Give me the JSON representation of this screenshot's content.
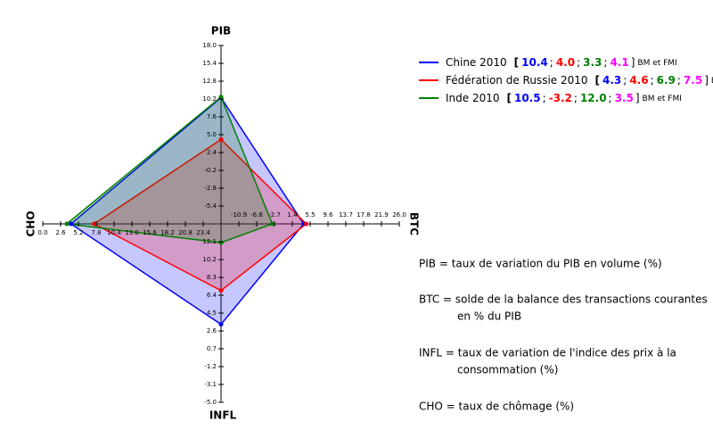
{
  "chart_data": {
    "type": "radar",
    "axes": [
      {
        "name": "PIB",
        "lim": [
          -8,
          18
        ],
        "ticks": [
          -5.4,
          -2.8,
          -0.2,
          2.4,
          {
            "value": 5,
            "label": "5.0"
          },
          7.6,
          10.2,
          12.8,
          15.4,
          {
            "value": 18,
            "label": "18.0"
          }
        ]
      },
      {
        "name": "BTC",
        "lim": [
          -15,
          26
        ],
        "ticks": [
          -10.9,
          -6.8,
          -2.7,
          1.4,
          5.5,
          9.6,
          13.7,
          17.8,
          21.9,
          {
            "value": 26,
            "label": "26.0"
          }
        ]
      },
      {
        "name": "INFL",
        "lim": [
          14,
          -5
        ],
        "ticks": [
          12.1,
          10.2,
          8.3,
          6.4,
          4.5,
          2.6,
          0.7,
          -1.2,
          -3.1,
          {
            "value": -5,
            "label": "-5.0"
          }
        ]
      },
      {
        "name": "CHO",
        "lim": [
          26,
          0
        ],
        "ticks": [
          23.4,
          20.8,
          18.2,
          15.6,
          {
            "value": 13,
            "label": "13.0"
          },
          10.4,
          7.8,
          5.2,
          2.6,
          {
            "value": 0,
            "label": "0.0"
          }
        ]
      }
    ],
    "value_colors": [
      "#0000ff",
      "#ff0000",
      "#008000",
      "#ff00ff"
    ],
    "series": [
      {
        "name": "Chine  2010",
        "color": "#0000ff",
        "values": [
          10.4,
          4.0,
          3.3,
          4.1
        ],
        "value_labels": [
          "10.4",
          "4.0",
          "3.3",
          "4.1"
        ],
        "source": "BM et FMI"
      },
      {
        "name": "Fédération de Russie  2010",
        "color": "#ff0000",
        "values": [
          4.3,
          4.6,
          6.9,
          7.5
        ],
        "value_labels": [
          "4.3",
          "4.6",
          "6.9",
          "7.5"
        ],
        "source": "BM et FMI"
      },
      {
        "name": "Inde  2010",
        "color": "#008000",
        "values": [
          10.5,
          -3.2,
          12.0,
          3.5
        ],
        "value_labels": [
          "10.5",
          "-3.2",
          "12.0",
          "3.5"
        ],
        "source": "BM et FMI"
      }
    ],
    "definitions": [
      [
        "PIB = taux de variation du PIB en volume (%)"
      ],
      [
        "BTC = solde de la balance des transactions courantes",
        "en % du PIB"
      ],
      [
        "INFL = taux de variation de l'indice des prix à la",
        "consommation (%)"
      ],
      [
        "CHO = taux de chômage (%)"
      ]
    ]
  }
}
